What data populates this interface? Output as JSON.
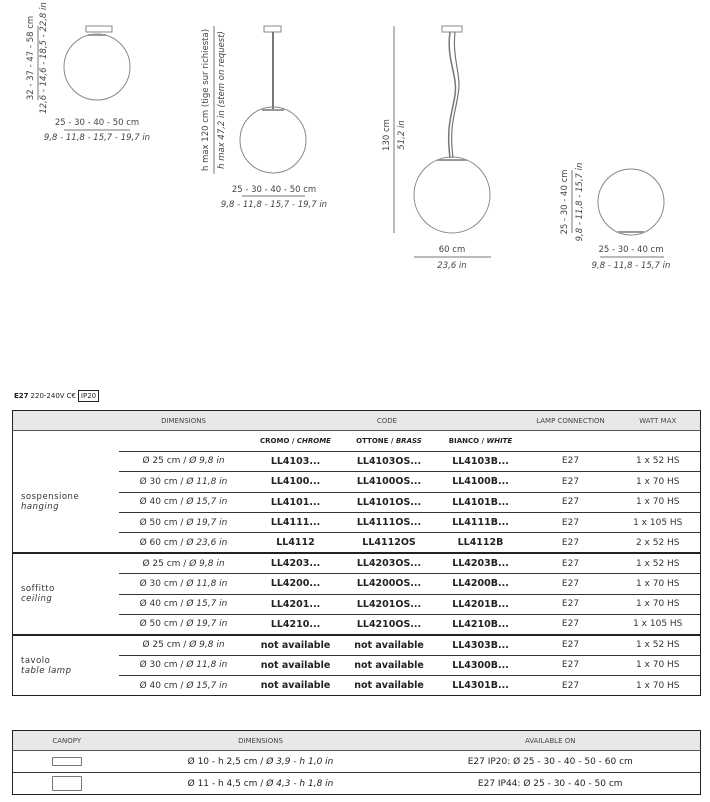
{
  "drawings": {
    "ceiling": {
      "height_cm": "32 - 37 - 47 - 58 cm",
      "height_in": "12,6 - 14,6 - 18,5 - 22,8 in",
      "width_cm": "25 - 30 - 40 - 50 cm",
      "width_in": "9,8 - 11,8 - 15,7 - 19,7 in"
    },
    "pendant_stem": {
      "height_cm": "h max 120 cm (tige sur richiesta)",
      "height_in": "h max 47,2 in (stem on request)",
      "width_cm": "25 - 30 - 40 - 50 cm",
      "width_in": "9,8 - 11,8 - 15,7 - 19,7 in"
    },
    "pendant_cable": {
      "height_cm": "130 cm",
      "height_in": "51,2 in",
      "width_cm": "60 cm",
      "width_in": "23,6 in"
    },
    "table": {
      "height_cm": "25 - 30 - 40 cm",
      "height_in": "9,8 - 11,8 - 15,7 in",
      "width_cm": "25 - 30 - 40 cm",
      "width_in": "9,8 - 11,8 - 15,7 in"
    }
  },
  "spec": {
    "socket": "E27",
    "voltage": "220-240V",
    "ce": "C€",
    "ip": "IP20"
  },
  "table": {
    "headers": {
      "dimensions": "DIMENSIONS",
      "code": "CODE",
      "lamp": "LAMP CONNECTION",
      "watt": "WATT MAX"
    },
    "finishes": {
      "chrome_it": "CROMO / ",
      "chrome_en": "CHROME",
      "brass_it": "OTTONE / ",
      "brass_en": "BRASS",
      "white_it": "BIANCO / ",
      "white_en": "WHITE"
    },
    "groups": [
      {
        "it": "sospensione",
        "en": "hanging",
        "rows": [
          {
            "cm": "Ø 25 cm / ",
            "in": "Ø 9,8 in",
            "chrome": "LL4103...",
            "brass": "LL4103OS...",
            "white": "LL4103B...",
            "lamp": "E27",
            "watt": "1 x 52 HS"
          },
          {
            "cm": "Ø 30 cm / ",
            "in": "Ø 11,8 in",
            "chrome": "LL4100...",
            "brass": "LL4100OS...",
            "white": "LL4100B...",
            "lamp": "E27",
            "watt": "1 x 70 HS"
          },
          {
            "cm": "Ø 40 cm / ",
            "in": "Ø 15,7 in",
            "chrome": "LL4101...",
            "brass": "LL4101OS...",
            "white": "LL4101B...",
            "lamp": "E27",
            "watt": "1 x 70 HS"
          },
          {
            "cm": "Ø 50 cm / ",
            "in": "Ø 19,7 in",
            "chrome": "LL4111...",
            "brass": "LL4111OS...",
            "white": "LL4111B...",
            "lamp": "E27",
            "watt": "1 x 105 HS"
          },
          {
            "cm": "Ø 60 cm / ",
            "in": "Ø 23,6 in",
            "chrome": "LL4112",
            "brass": "LL4112OS",
            "white": "LL4112B",
            "lamp": "E27",
            "watt": "2 x 52 HS"
          }
        ]
      },
      {
        "it": "soffitto",
        "en": "ceiling",
        "rows": [
          {
            "cm": "Ø 25 cm / ",
            "in": "Ø 9,8 in",
            "chrome": "LL4203...",
            "brass": "LL4203OS...",
            "white": "LL4203B...",
            "lamp": "E27",
            "watt": "1 x 52 HS"
          },
          {
            "cm": "Ø 30 cm / ",
            "in": "Ø 11,8 in",
            "chrome": "LL4200...",
            "brass": "LL4200OS...",
            "white": "LL4200B...",
            "lamp": "E27",
            "watt": "1 x 70 HS"
          },
          {
            "cm": "Ø 40 cm / ",
            "in": "Ø 15,7 in",
            "chrome": "LL4201...",
            "brass": "LL4201OS...",
            "white": "LL4201B...",
            "lamp": "E27",
            "watt": "1 x 70 HS"
          },
          {
            "cm": "Ø 50 cm / ",
            "in": "Ø 19,7 in",
            "chrome": "LL4210...",
            "brass": "LL4210OS...",
            "white": "LL4210B...",
            "lamp": "E27",
            "watt": "1 x 105 HS"
          }
        ]
      },
      {
        "it": "tavolo",
        "en": "table lamp",
        "rows": [
          {
            "cm": "Ø 25 cm / ",
            "in": "Ø 9,8 in",
            "chrome": "not available",
            "brass": "not available",
            "white": "LL4303B...",
            "lamp": "E27",
            "watt": "1 x 52 HS"
          },
          {
            "cm": "Ø 30 cm / ",
            "in": "Ø 11,8 in",
            "chrome": "not available",
            "brass": "not available",
            "white": "LL4300B...",
            "lamp": "E27",
            "watt": "1 x 70 HS"
          },
          {
            "cm": "Ø 40 cm / ",
            "in": "Ø 15,7 in",
            "chrome": "not available",
            "brass": "not available",
            "white": "LL4301B...",
            "lamp": "E27",
            "watt": "1 x 70 HS"
          }
        ]
      }
    ]
  },
  "canopy_table": {
    "headers": {
      "canopy": "CANOPY",
      "dimensions": "DIMENSIONS",
      "available": "AVAILABLE ON"
    },
    "rows": [
      {
        "cm": "Ø 10 - h  2,5 cm / ",
        "in": "Ø 3,9 - h 1,0 in",
        "available": "E27 IP20: Ø 25 - 30 - 40 - 50 - 60 cm"
      },
      {
        "cm": "Ø 11 - h  4,5 cm / ",
        "in": "Ø 4,3 - h 1,8 in",
        "available": "E27 IP44: Ø 25 - 30 - 40 - 50 cm"
      }
    ]
  }
}
